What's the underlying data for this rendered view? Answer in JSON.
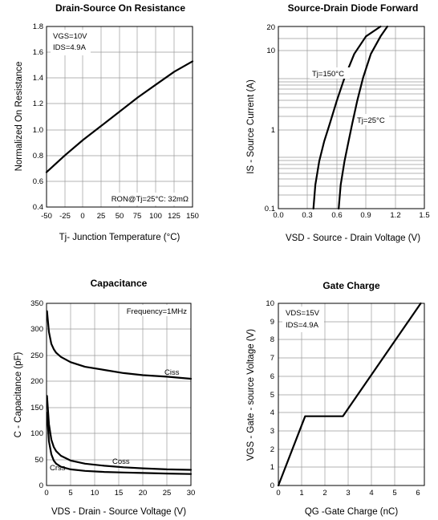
{
  "chart_data": [
    {
      "type": "line",
      "title": "Drain-Source On Resistance",
      "xlabel": "Tj- Junction Temperature (°C)",
      "ylabel": "Normalized On Resistance",
      "xlim": [
        -50,
        150
      ],
      "ylim": [
        0.4,
        1.8
      ],
      "x_ticks": [
        "-50",
        "-25",
        "0",
        "25",
        "50",
        "75",
        "100",
        "125",
        "150"
      ],
      "y_ticks": [
        "0.4",
        "0.6",
        "0.8",
        "1.0",
        "1.2",
        "1.4",
        "1.6",
        "1.8"
      ],
      "grid": true,
      "annotations": [
        "VGS=10V",
        "IDS=4.9A",
        "RON@Tj=25°C: 32mΩ"
      ],
      "series": [
        {
          "x": [
            -50,
            -25,
            0,
            25,
            50,
            75,
            100,
            125,
            150
          ],
          "y": [
            0.67,
            0.8,
            0.92,
            1.03,
            1.14,
            1.25,
            1.35,
            1.45,
            1.53
          ]
        }
      ]
    },
    {
      "type": "line",
      "title": "Source-Drain Diode Forward",
      "xlabel": "VSD - Source - Drain Voltage (V)",
      "ylabel": "IS - Source Current (A)",
      "xlim": [
        0.0,
        1.5
      ],
      "ylim": [
        0.1,
        20
      ],
      "yscale": "log",
      "x_ticks": [
        "0.0",
        "0.3",
        "0.6",
        "0.9",
        "1.2",
        "1.5"
      ],
      "y_ticks": [
        "0.1",
        "1",
        "10",
        "20"
      ],
      "grid": true,
      "series": [
        {
          "name": "Tj=150°C",
          "x": [
            0.36,
            0.38,
            0.42,
            0.47,
            0.53,
            0.6,
            0.68,
            0.78,
            0.9,
            1.05
          ],
          "y": [
            0.1,
            0.2,
            0.4,
            0.7,
            1.2,
            2.3,
            4.5,
            9,
            15,
            20
          ]
        },
        {
          "name": "Tj=25°C",
          "x": [
            0.62,
            0.64,
            0.68,
            0.72,
            0.76,
            0.81,
            0.87,
            0.95,
            1.05,
            1.12
          ],
          "y": [
            0.1,
            0.2,
            0.4,
            0.7,
            1.2,
            2.3,
            4.5,
            9,
            15,
            20
          ]
        }
      ]
    },
    {
      "type": "line",
      "title": "Capacitance",
      "xlabel": "VDS - Drain - Source Voltage (V)",
      "ylabel": "C - Capacitance (pF)",
      "xlim": [
        0,
        30
      ],
      "ylim": [
        0,
        350
      ],
      "x_ticks": [
        "0",
        "5",
        "10",
        "15",
        "20",
        "25",
        "30"
      ],
      "y_ticks": [
        "0",
        "50",
        "100",
        "150",
        "200",
        "250",
        "300",
        "350"
      ],
      "grid": true,
      "annotations": [
        "Frequency=1MHz"
      ],
      "series": [
        {
          "name": "Ciss",
          "x": [
            0.1,
            0.5,
            1,
            1.5,
            2,
            3,
            5,
            8,
            12,
            16,
            20,
            25,
            30
          ],
          "y": [
            335,
            295,
            272,
            262,
            255,
            247,
            237,
            228,
            222,
            216,
            212,
            209,
            205
          ]
        },
        {
          "name": "Coss",
          "x": [
            0.1,
            0.5,
            1,
            1.5,
            2,
            3,
            5,
            8,
            12,
            16,
            20,
            25,
            30
          ],
          "y": [
            172,
            118,
            88,
            74,
            66,
            57,
            48,
            42,
            38,
            35,
            33,
            31,
            30
          ]
        },
        {
          "name": "Crss",
          "x": [
            0.1,
            0.5,
            1,
            1.5,
            2,
            3,
            5,
            8,
            12,
            16,
            20,
            25,
            30
          ],
          "y": [
            140,
            85,
            60,
            48,
            42,
            36,
            31,
            28,
            26,
            25,
            24,
            23,
            22
          ]
        }
      ]
    },
    {
      "type": "line",
      "title": "Gate Charge",
      "xlabel": "QG -Gate Charge (nC)",
      "ylabel": "VGS - Gate - source Voltage (V)",
      "xlim": [
        0,
        6
      ],
      "ylim": [
        0,
        10
      ],
      "x_ticks": [
        "0",
        "1",
        "2",
        "3",
        "4",
        "5",
        "6"
      ],
      "y_ticks": [
        "0",
        "1",
        "2",
        "3",
        "4",
        "5",
        "6",
        "7",
        "8",
        "9",
        "10"
      ],
      "grid": true,
      "annotations": [
        "VDS=15V",
        "IDS=4.9A"
      ],
      "series": [
        {
          "x": [
            0,
            1.1,
            2.65,
            5.85
          ],
          "y": [
            0,
            3.8,
            3.8,
            10
          ]
        }
      ]
    }
  ]
}
